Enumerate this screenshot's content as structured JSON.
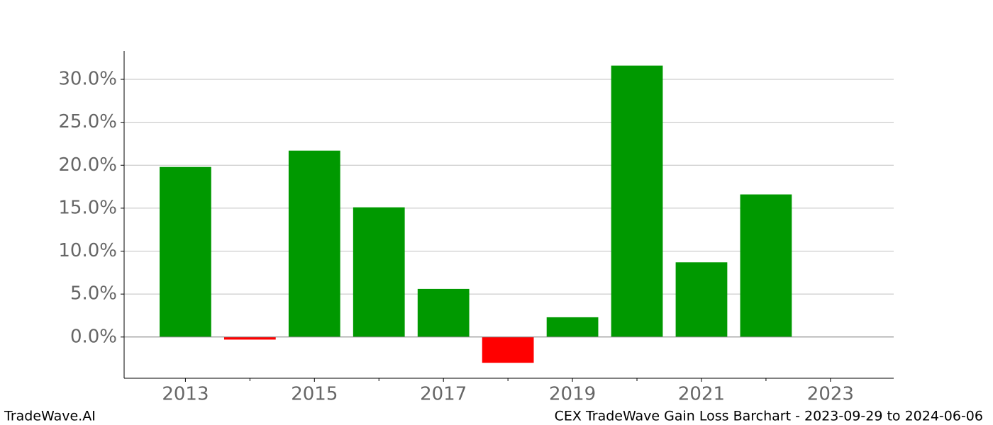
{
  "chart_data": {
    "type": "bar",
    "x": [
      2013,
      2014,
      2015,
      2016,
      2017,
      2018,
      2019,
      2020,
      2021,
      2022
    ],
    "values": [
      19.8,
      -0.3,
      21.7,
      15.1,
      5.6,
      -3.0,
      2.3,
      31.6,
      8.7,
      16.6
    ],
    "positive_color": "#009900",
    "negative_color": "#ff0000",
    "xlim": [
      2012.05,
      2023.98
    ],
    "xticks": [
      2013,
      2015,
      2017,
      2019,
      2021,
      2023
    ],
    "xminorticks": [
      2014,
      2016,
      2018,
      2020,
      2022
    ],
    "ylim": [
      -4.8,
      33.3
    ],
    "yticks": [
      {
        "value": 0,
        "label": "0.0%"
      },
      {
        "value": 5,
        "label": "5.0%"
      },
      {
        "value": 10,
        "label": "10.0%"
      },
      {
        "value": 15,
        "label": "15.0%"
      },
      {
        "value": 20,
        "label": "20.0%"
      },
      {
        "value": 25,
        "label": "25.0%"
      },
      {
        "value": 30,
        "label": "30.0%"
      }
    ],
    "grid": true,
    "hline": 0,
    "watermark": "TradeWave.AI",
    "subtitle": "CEX TradeWave Gain Loss Barchart - 2023-09-29 to 2024-06-06"
  }
}
